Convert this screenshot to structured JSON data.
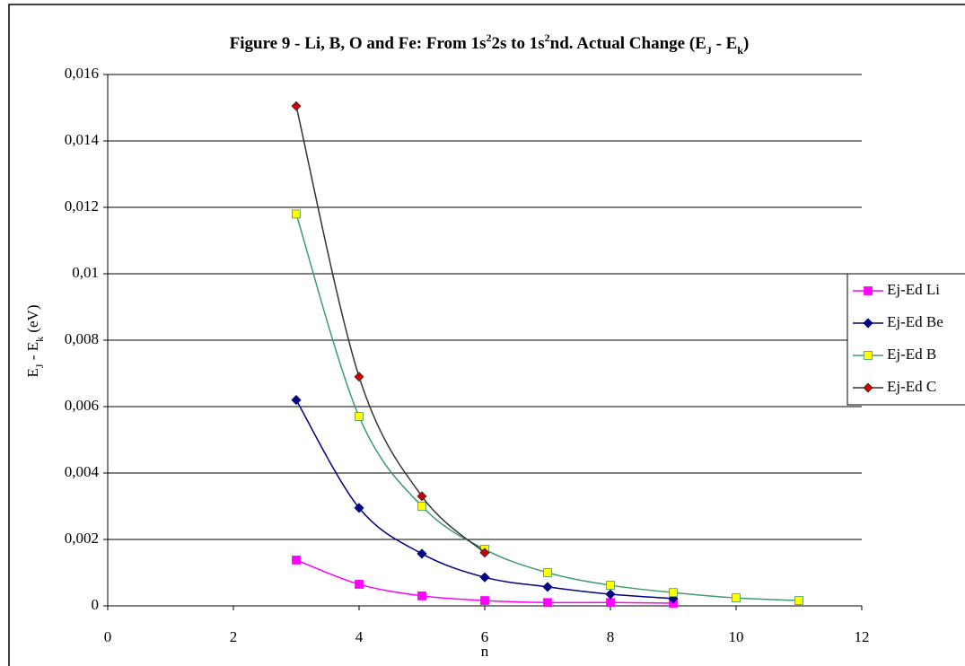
{
  "chart_data": {
    "type": "line",
    "title_parts": [
      "Figure 9 - Li, B, O and Fe: From 1s",
      "2",
      "2s to 1s",
      "2",
      "nd. Actual Change (E",
      "J",
      " - E",
      "k",
      ")"
    ],
    "ylabel_parts": [
      "E",
      "J",
      " - E",
      "k",
      " (eV)"
    ],
    "xlabel": "n",
    "x": [
      3,
      4,
      5,
      6,
      7,
      8,
      9,
      10,
      11
    ],
    "series": [
      {
        "name": "Ej-Ed Li",
        "color": "#ff00ff",
        "marker": "square",
        "marker_fill": "#ff00ff",
        "values": [
          0.00138,
          0.00065,
          0.0003,
          0.00016,
          0.0001,
          0.0001,
          8e-05,
          null,
          null
        ]
      },
      {
        "name": "Ej-Ed Be",
        "color": "#000080",
        "marker": "diamond",
        "marker_fill": "#000080",
        "values": [
          0.0062,
          0.00295,
          0.00157,
          0.00086,
          0.00057,
          0.00035,
          0.00022,
          null,
          null
        ]
      },
      {
        "name": "Ej-Ed B",
        "color": "#3f9a6e",
        "marker": "square",
        "marker_fill": "#ffff00",
        "values": [
          0.0118,
          0.0057,
          0.003,
          0.0017,
          0.001,
          0.00062,
          0.0004,
          0.00024,
          0.00016
        ]
      },
      {
        "name": "Ej-Ed C",
        "color": "#333333",
        "marker": "diamond",
        "marker_fill": "#cc0000",
        "values": [
          0.01505,
          0.0069,
          0.0033,
          0.0016,
          null,
          null,
          null,
          null,
          null
        ]
      }
    ],
    "xlim": [
      0,
      12
    ],
    "xticks": [
      0,
      2,
      4,
      6,
      8,
      10,
      12
    ],
    "ylim": [
      0,
      0.016
    ],
    "yticks": [
      0,
      {
        "value": 0.002,
        "label": "0,002"
      },
      {
        "value": 0.004,
        "label": "0,004"
      },
      {
        "value": 0.006,
        "label": "0,006"
      },
      {
        "value": 0.008,
        "label": "0,008"
      },
      {
        "value": 0.01,
        "label": "0,01"
      },
      {
        "value": 0.012,
        "label": "0,012"
      },
      {
        "value": 0.014,
        "label": "0,014"
      },
      {
        "value": 0.016,
        "label": "0,016"
      }
    ],
    "grid": true,
    "legend": "right"
  }
}
